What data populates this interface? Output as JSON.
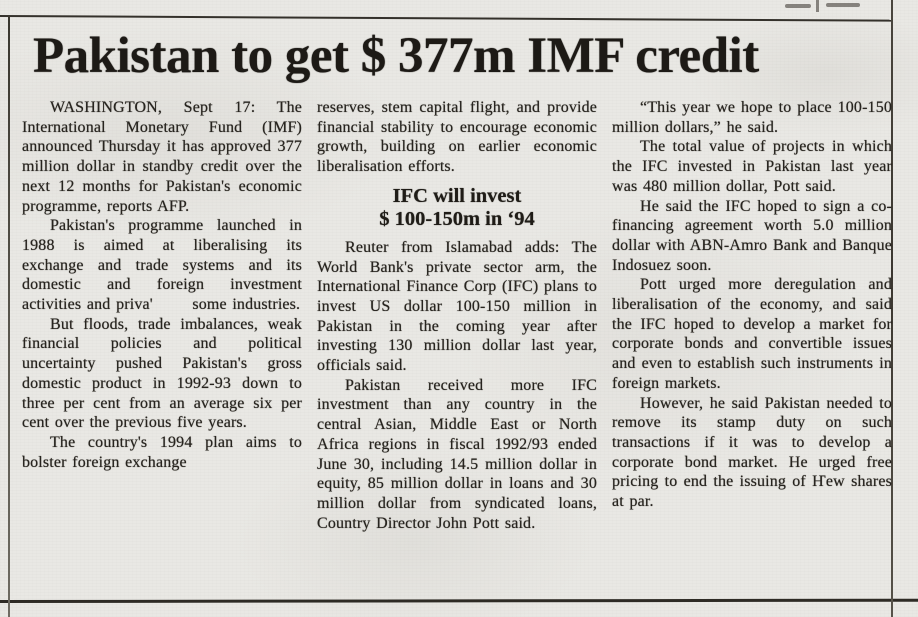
{
  "colors": {
    "paper": "#e9e8e4",
    "ink": "#27241f"
  },
  "article": {
    "headline": "Pakistan to get $ 377m IMF credit",
    "column1": {
      "p1": "WASHINGTON, Sept 17: The International Monetary Fund (IMF) announced Thursday it has approved 377 million dollar in standby credit over the next 12 months for Pakistan's economic programme, reports AFP.",
      "p2": "Pakistan's programme launched in 1988 is aimed at liberalising its exchange and trade systems and its domestic and foreign investment activities and priva'       some industries.",
      "p3": "But floods, trade imbalances, weak financial policies and political uncertainty pushed Pakistan's gross domestic product in 1992-93 down to three per cent from an average six per cent over the previous five years.",
      "p4": "The country's 1994 plan aims to bolster foreign exchange"
    },
    "column2": {
      "p1": "reserves, stem capital flight, and provide financial stability to encourage economic growth, building on earlier economic liberalisation efforts.",
      "subhead_line1": "IFC will invest",
      "subhead_line2": "$ 100-150m in ‘94",
      "p2": "Reuter from Islamabad adds: The World Bank's private sector arm, the International Finance Corp (IFC) plans to invest US dollar 100-150 million in Pakistan in the coming year after investing 130 million dollar last year, officials said.",
      "p3": "Pakistan received more IFC investment than any country in the central Asian, Middle East or North Africa regions in fiscal 1992/93 ended June 30, including 14.5 million dollar in equity, 85 million dollar in loans and 30 million dollar from syndicated loans, Country Director John Pott said."
    },
    "column3": {
      "p1": "“This year we hope to place 100-150 million dollars,” he said.",
      "p2": "The total value of projects in which the IFC invested in Pakistan last year was 480 million dollar, Pott said.",
      "p3": "He said the IFC hoped to sign a co-financing agreement worth 5.0 million dollar with ABN-Amro Bank and Banque Indosuez soon.",
      "p4": "Pott urged more deregulation and liberalisation of the economy, and said the IFC hoped to develop a market for corporate bonds and convertible issues and even to establish such instruments in foreign markets.",
      "p5": "However, he said Pakistan needed to remove its stamp duty on such transactions if it was to develop a corporate bond market. He urged free pricing to end the issuing of Ҥew shares at par."
    }
  }
}
